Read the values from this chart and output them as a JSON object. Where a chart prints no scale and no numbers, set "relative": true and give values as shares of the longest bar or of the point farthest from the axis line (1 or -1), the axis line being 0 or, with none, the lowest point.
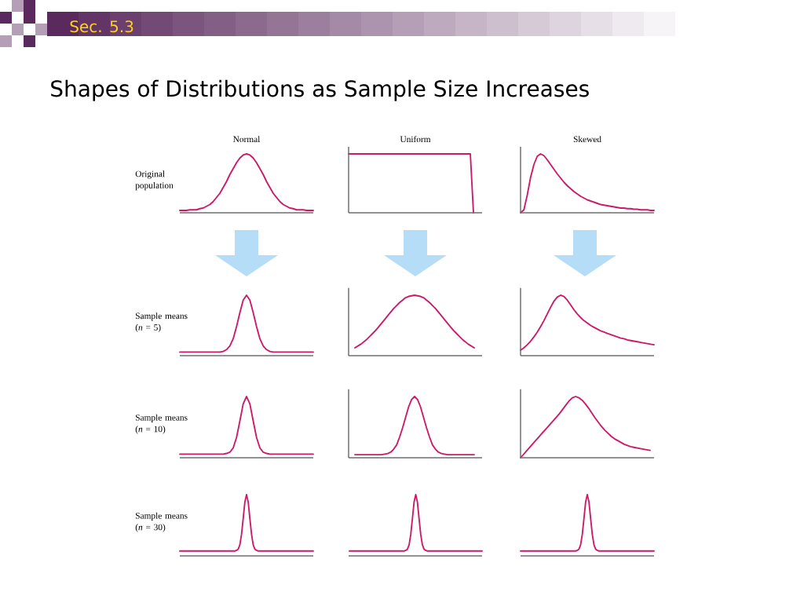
{
  "chart_data": [
    {
      "type": "line",
      "relative": true,
      "title": "Normal",
      "ylabel": "Original population",
      "annotations": [
        "Sec. 5.3",
        "Shapes of Distributions as Sample Size Increases"
      ],
      "color": "#cc1a6a",
      "categories": [
        null,
        null,
        null,
        null,
        null,
        null,
        null,
        null,
        null,
        null,
        null,
        null,
        null,
        null,
        null,
        null,
        null,
        null,
        null,
        null,
        null,
        null,
        null,
        null,
        null,
        null,
        null,
        null,
        null,
        null,
        null,
        null,
        null,
        null,
        null,
        null,
        null,
        null,
        null,
        null,
        null
      ],
      "values": [
        0.04,
        0.04,
        0.04,
        0.05,
        0.05,
        0.05,
        0.07,
        0.08,
        0.11,
        0.14,
        0.19,
        0.26,
        0.33,
        0.43,
        0.53,
        0.65,
        0.75,
        0.85,
        0.93,
        0.98,
        1,
        0.98,
        0.93,
        0.85,
        0.75,
        0.65,
        0.53,
        0.43,
        0.33,
        0.26,
        0.19,
        0.14,
        0.11,
        0.08,
        0.07,
        0.05,
        0.05,
        0.05,
        0.04,
        0.04,
        0.04
      ]
    },
    {
      "type": "line",
      "relative": true,
      "title": "Uniform",
      "color": "#cc1a6a",
      "categories": [
        null,
        null,
        null,
        null,
        null,
        null,
        null,
        null,
        null,
        null,
        null,
        null,
        null,
        null,
        null,
        null,
        null,
        null,
        null,
        null,
        null,
        null,
        null,
        null,
        null,
        null,
        null,
        null,
        null,
        null,
        null,
        null,
        null,
        null,
        null,
        null,
        null,
        null,
        null,
        null,
        null
      ],
      "values": [
        1,
        1,
        1,
        1,
        1,
        1,
        1,
        1,
        1,
        1,
        1,
        1,
        1,
        1,
        1,
        1,
        1,
        1,
        1,
        1,
        1,
        1,
        1,
        1,
        1,
        1,
        1,
        1,
        1,
        1,
        1,
        1,
        1,
        1,
        1,
        1,
        1,
        1,
        1,
        1,
        0
      ]
    },
    {
      "type": "line",
      "relative": true,
      "title": "Skewed",
      "color": "#cc1a6a",
      "categories": [
        null,
        null,
        null,
        null,
        null,
        null,
        null,
        null,
        null,
        null,
        null,
        null,
        null,
        null,
        null,
        null,
        null,
        null,
        null,
        null,
        null,
        null,
        null,
        null,
        null,
        null,
        null,
        null,
        null,
        null,
        null,
        null,
        null,
        null,
        null,
        null,
        null,
        null,
        null,
        null,
        null
      ],
      "values": [
        0,
        0.05,
        0.3,
        0.6,
        0.82,
        0.96,
        1,
        0.97,
        0.9,
        0.82,
        0.74,
        0.66,
        0.59,
        0.52,
        0.46,
        0.41,
        0.36,
        0.32,
        0.28,
        0.25,
        0.22,
        0.2,
        0.18,
        0.16,
        0.14,
        0.13,
        0.12,
        0.11,
        0.1,
        0.09,
        0.08,
        0.08,
        0.07,
        0.07,
        0.06,
        0.06,
        0.05,
        0.05,
        0.05,
        0.04,
        0.04
      ]
    },
    {
      "type": "line",
      "relative": true,
      "ylabel": "Sample means (*n* = 5)",
      "color": "#cc1a6a",
      "categories": [
        null,
        null,
        null,
        null,
        null,
        null,
        null,
        null,
        null,
        null,
        null,
        null,
        null,
        null,
        null,
        null,
        null,
        null,
        null,
        null,
        null,
        null,
        null,
        null,
        null,
        null,
        null,
        null,
        null,
        null,
        null,
        null,
        null,
        null,
        null,
        null,
        null,
        null,
        null,
        null,
        null
      ],
      "values": [
        0.06,
        0.06,
        0.06,
        0.06,
        0.06,
        0.06,
        0.06,
        0.06,
        0.06,
        0.06,
        0.06,
        0.06,
        0.06,
        0.07,
        0.1,
        0.16,
        0.28,
        0.48,
        0.71,
        0.92,
        1,
        0.92,
        0.71,
        0.48,
        0.28,
        0.16,
        0.1,
        0.07,
        0.06,
        0.06,
        0.06,
        0.06,
        0.06,
        0.06,
        0.06,
        0.06,
        0.06,
        0.06,
        0.06,
        0.06,
        0.06
      ]
    },
    {
      "type": "line",
      "relative": true,
      "color": "#cc1a6a",
      "categories": [
        null,
        null,
        null,
        null,
        null,
        null,
        null,
        null,
        null,
        null,
        null,
        null,
        null,
        null,
        null,
        null,
        null,
        null,
        null,
        null,
        null,
        null,
        null,
        null,
        null,
        null,
        null,
        null,
        null,
        null,
        null,
        null,
        null,
        null,
        null,
        null,
        null,
        null,
        null,
        null,
        null
      ],
      "values": [
        0.13,
        0.16,
        0.19,
        0.23,
        0.27,
        0.32,
        0.37,
        0.42,
        0.48,
        0.54,
        0.6,
        0.66,
        0.72,
        0.78,
        0.83,
        0.88,
        0.92,
        0.96,
        0.98,
        0.99,
        1,
        0.99,
        0.98,
        0.96,
        0.92,
        0.88,
        0.83,
        0.78,
        0.72,
        0.66,
        0.6,
        0.54,
        0.48,
        0.42,
        0.37,
        0.32,
        0.27,
        0.23,
        0.19,
        0.16,
        0.13
      ]
    },
    {
      "type": "line",
      "relative": true,
      "color": "#cc1a6a",
      "categories": [
        null,
        null,
        null,
        null,
        null,
        null,
        null,
        null,
        null,
        null,
        null,
        null,
        null,
        null,
        null,
        null,
        null,
        null,
        null,
        null,
        null,
        null,
        null,
        null,
        null,
        null,
        null,
        null,
        null,
        null,
        null,
        null,
        null,
        null,
        null,
        null,
        null,
        null,
        null,
        null,
        null
      ],
      "values": [
        0.09,
        0.13,
        0.18,
        0.24,
        0.31,
        0.39,
        0.48,
        0.58,
        0.69,
        0.8,
        0.9,
        0.97,
        1,
        0.98,
        0.92,
        0.84,
        0.76,
        0.69,
        0.63,
        0.58,
        0.54,
        0.5,
        0.47,
        0.44,
        0.41,
        0.39,
        0.37,
        0.35,
        0.33,
        0.31,
        0.29,
        0.28,
        0.26,
        0.25,
        0.24,
        0.23,
        0.22,
        0.21,
        0.2,
        0.19,
        0.18
      ]
    },
    {
      "type": "line",
      "relative": true,
      "ylabel": "Sample means (*n* = 10)",
      "color": "#cc1a6a",
      "categories": [
        null,
        null,
        null,
        null,
        null,
        null,
        null,
        null,
        null,
        null,
        null,
        null,
        null,
        null,
        null,
        null,
        null,
        null,
        null,
        null,
        null,
        null,
        null,
        null,
        null,
        null,
        null,
        null,
        null,
        null,
        null,
        null,
        null,
        null,
        null,
        null,
        null,
        null,
        null,
        null,
        null
      ],
      "values": [
        0.06,
        0.06,
        0.06,
        0.06,
        0.06,
        0.06,
        0.06,
        0.06,
        0.06,
        0.06,
        0.06,
        0.06,
        0.06,
        0.06,
        0.07,
        0.09,
        0.16,
        0.33,
        0.6,
        0.88,
        1,
        0.88,
        0.6,
        0.33,
        0.16,
        0.09,
        0.07,
        0.06,
        0.06,
        0.06,
        0.06,
        0.06,
        0.06,
        0.06,
        0.06,
        0.06,
        0.06,
        0.06,
        0.06,
        0.06,
        0.06
      ]
    },
    {
      "type": "line",
      "relative": true,
      "color": "#cc1a6a",
      "categories": [
        null,
        null,
        null,
        null,
        null,
        null,
        null,
        null,
        null,
        null,
        null,
        null,
        null,
        null,
        null,
        null,
        null,
        null,
        null,
        null,
        null,
        null,
        null,
        null,
        null,
        null,
        null,
        null,
        null,
        null,
        null,
        null,
        null,
        null,
        null,
        null,
        null,
        null,
        null,
        null,
        null
      ],
      "values": [
        0.05,
        0.05,
        0.05,
        0.05,
        0.05,
        0.05,
        0.05,
        0.05,
        0.05,
        0.05,
        0.06,
        0.07,
        0.09,
        0.14,
        0.21,
        0.34,
        0.49,
        0.66,
        0.83,
        0.95,
        1,
        0.95,
        0.83,
        0.66,
        0.49,
        0.34,
        0.21,
        0.14,
        0.09,
        0.07,
        0.06,
        0.05,
        0.05,
        0.05,
        0.05,
        0.05,
        0.05,
        0.05,
        0.05,
        0.05,
        0.05
      ]
    },
    {
      "type": "line",
      "relative": true,
      "color": "#cc1a6a",
      "categories": [
        null,
        null,
        null,
        null,
        null,
        null,
        null,
        null,
        null,
        null,
        null,
        null,
        null,
        null,
        null,
        null,
        null,
        null,
        null,
        null,
        null,
        null,
        null,
        null,
        null,
        null,
        null,
        null,
        null,
        null,
        null,
        null,
        null,
        null,
        null,
        null,
        null,
        null,
        null,
        null,
        null
      ],
      "values": [
        0,
        0.06,
        0.12,
        0.18,
        0.24,
        0.3,
        0.36,
        0.42,
        0.48,
        0.54,
        0.6,
        0.66,
        0.72,
        0.79,
        0.86,
        0.93,
        0.98,
        1,
        0.98,
        0.94,
        0.88,
        0.81,
        0.73,
        0.65,
        0.58,
        0.51,
        0.45,
        0.4,
        0.35,
        0.31,
        0.28,
        0.25,
        0.22,
        0.2,
        0.18,
        0.17,
        0.16,
        0.15,
        0.14,
        0.13,
        0.12
      ]
    },
    {
      "type": "line",
      "relative": true,
      "ylabel": "Sample means (*n* = 30)",
      "color": "#cc1a6a",
      "categories": [
        null,
        null,
        null,
        null,
        null,
        null,
        null,
        null,
        null,
        null,
        null,
        null,
        null,
        null,
        null,
        null,
        null,
        null,
        null,
        null,
        null,
        null,
        null,
        null,
        null,
        null,
        null,
        null,
        null,
        null,
        null,
        null,
        null,
        null,
        null,
        null,
        null,
        null,
        null,
        null,
        null,
        null,
        null,
        null,
        null,
        null,
        null,
        null,
        null,
        null,
        null,
        null,
        null,
        null,
        null,
        null,
        null,
        null,
        null,
        null,
        null,
        null,
        null,
        null,
        null,
        null,
        null,
        null,
        null,
        null,
        null,
        null,
        null,
        null,
        null,
        null,
        null,
        null,
        null,
        null,
        null
      ],
      "values": [
        0.08,
        0.08,
        0.08,
        0.08,
        0.08,
        0.08,
        0.08,
        0.08,
        0.08,
        0.08,
        0.08,
        0.08,
        0.08,
        0.08,
        0.08,
        0.08,
        0.08,
        0.08,
        0.08,
        0.08,
        0.08,
        0.08,
        0.08,
        0.08,
        0.08,
        0.08,
        0.08,
        0.08,
        0.08,
        0.08,
        0.08,
        0.08,
        0.08,
        0.08,
        0.09,
        0.11,
        0.18,
        0.35,
        0.61,
        0.88,
        1,
        0.88,
        0.61,
        0.35,
        0.18,
        0.11,
        0.09,
        0.08,
        0.08,
        0.08,
        0.08,
        0.08,
        0.08,
        0.08,
        0.08,
        0.08,
        0.08,
        0.08,
        0.08,
        0.08,
        0.08,
        0.08,
        0.08,
        0.08,
        0.08,
        0.08,
        0.08,
        0.08,
        0.08,
        0.08,
        0.08,
        0.08,
        0.08,
        0.08,
        0.08,
        0.08,
        0.08,
        0.08,
        0.08,
        0.08,
        0.08
      ]
    },
    {
      "type": "line",
      "relative": true,
      "color": "#cc1a6a",
      "categories": [
        null,
        null,
        null,
        null,
        null,
        null,
        null,
        null,
        null,
        null,
        null,
        null,
        null,
        null,
        null,
        null,
        null,
        null,
        null,
        null,
        null,
        null,
        null,
        null,
        null,
        null,
        null,
        null,
        null,
        null,
        null,
        null,
        null,
        null,
        null,
        null,
        null,
        null,
        null,
        null,
        null,
        null,
        null,
        null,
        null,
        null,
        null,
        null,
        null,
        null,
        null,
        null,
        null,
        null,
        null,
        null,
        null,
        null,
        null,
        null,
        null,
        null,
        null,
        null,
        null,
        null,
        null,
        null,
        null,
        null,
        null,
        null,
        null,
        null,
        null,
        null,
        null,
        null,
        null,
        null,
        null
      ],
      "values": [
        0.08,
        0.08,
        0.08,
        0.08,
        0.08,
        0.08,
        0.08,
        0.08,
        0.08,
        0.08,
        0.08,
        0.08,
        0.08,
        0.08,
        0.08,
        0.08,
        0.08,
        0.08,
        0.08,
        0.08,
        0.08,
        0.08,
        0.08,
        0.08,
        0.08,
        0.08,
        0.08,
        0.08,
        0.08,
        0.08,
        0.08,
        0.08,
        0.08,
        0.08,
        0.09,
        0.11,
        0.18,
        0.35,
        0.61,
        0.88,
        1,
        0.88,
        0.61,
        0.35,
        0.18,
        0.11,
        0.09,
        0.08,
        0.08,
        0.08,
        0.08,
        0.08,
        0.08,
        0.08,
        0.08,
        0.08,
        0.08,
        0.08,
        0.08,
        0.08,
        0.08,
        0.08,
        0.08,
        0.08,
        0.08,
        0.08,
        0.08,
        0.08,
        0.08,
        0.08,
        0.08,
        0.08,
        0.08,
        0.08,
        0.08,
        0.08,
        0.08,
        0.08,
        0.08,
        0.08,
        0.08
      ]
    },
    {
      "type": "line",
      "relative": true,
      "color": "#cc1a6a",
      "categories": [
        null,
        null,
        null,
        null,
        null,
        null,
        null,
        null,
        null,
        null,
        null,
        null,
        null,
        null,
        null,
        null,
        null,
        null,
        null,
        null,
        null,
        null,
        null,
        null,
        null,
        null,
        null,
        null,
        null,
        null,
        null,
        null,
        null,
        null,
        null,
        null,
        null,
        null,
        null,
        null,
        null,
        null,
        null,
        null,
        null,
        null,
        null,
        null,
        null,
        null,
        null,
        null,
        null,
        null,
        null,
        null,
        null,
        null,
        null,
        null,
        null,
        null,
        null,
        null,
        null,
        null,
        null,
        null,
        null,
        null,
        null,
        null,
        null,
        null,
        null,
        null,
        null,
        null,
        null,
        null,
        null
      ],
      "values": [
        0.08,
        0.08,
        0.08,
        0.08,
        0.08,
        0.08,
        0.08,
        0.08,
        0.08,
        0.08,
        0.08,
        0.08,
        0.08,
        0.08,
        0.08,
        0.08,
        0.08,
        0.08,
        0.08,
        0.08,
        0.08,
        0.08,
        0.08,
        0.08,
        0.08,
        0.08,
        0.08,
        0.08,
        0.08,
        0.08,
        0.08,
        0.08,
        0.08,
        0.08,
        0.09,
        0.11,
        0.18,
        0.35,
        0.61,
        0.88,
        1,
        0.88,
        0.61,
        0.35,
        0.18,
        0.11,
        0.09,
        0.08,
        0.08,
        0.08,
        0.08,
        0.08,
        0.08,
        0.08,
        0.08,
        0.08,
        0.08,
        0.08,
        0.08,
        0.08,
        0.08,
        0.08,
        0.08,
        0.08,
        0.08,
        0.08,
        0.08,
        0.08,
        0.08,
        0.08,
        0.08,
        0.08,
        0.08,
        0.08,
        0.08,
        0.08,
        0.08,
        0.08,
        0.08,
        0.08,
        0.08
      ]
    }
  ]
}
